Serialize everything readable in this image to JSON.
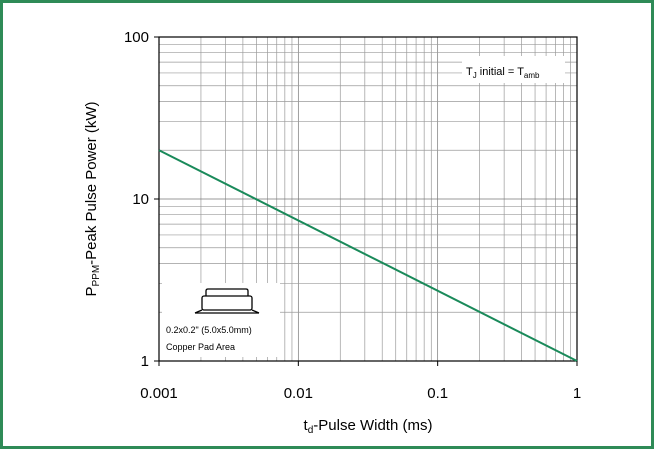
{
  "chart_data": {
    "type": "line",
    "x_scale": "log",
    "y_scale": "log",
    "xlim": [
      0.001,
      1
    ],
    "ylim": [
      1,
      100
    ],
    "xlabel": {
      "main": "t",
      "sub": "d",
      "rest": "-Pulse Width (ms)"
    },
    "ylabel": {
      "main": "P",
      "sub": "PPM",
      "rest": "-Peak Pulse Power (kW)"
    },
    "x_ticks": [
      {
        "value": 0.001,
        "label": "0.001"
      },
      {
        "value": 0.01,
        "label": "0.01"
      },
      {
        "value": 0.1,
        "label": "0.1"
      },
      {
        "value": 1,
        "label": "1"
      }
    ],
    "y_ticks": [
      {
        "value": 1,
        "label": "1"
      },
      {
        "value": 10,
        "label": "10"
      },
      {
        "value": 100,
        "label": "100"
      }
    ],
    "grid": true,
    "series": [
      {
        "color": "#1a8a5a",
        "x": [
          0.001,
          1
        ],
        "y": [
          20,
          1
        ]
      }
    ],
    "annotation": {
      "t": "T",
      "tsub": "J",
      "mid": " initial = T",
      "msub": "amb"
    },
    "inset": {
      "line1": "0.2x0.2\" (5.0x5.0mm)",
      "line2": "Copper Pad Area"
    }
  }
}
